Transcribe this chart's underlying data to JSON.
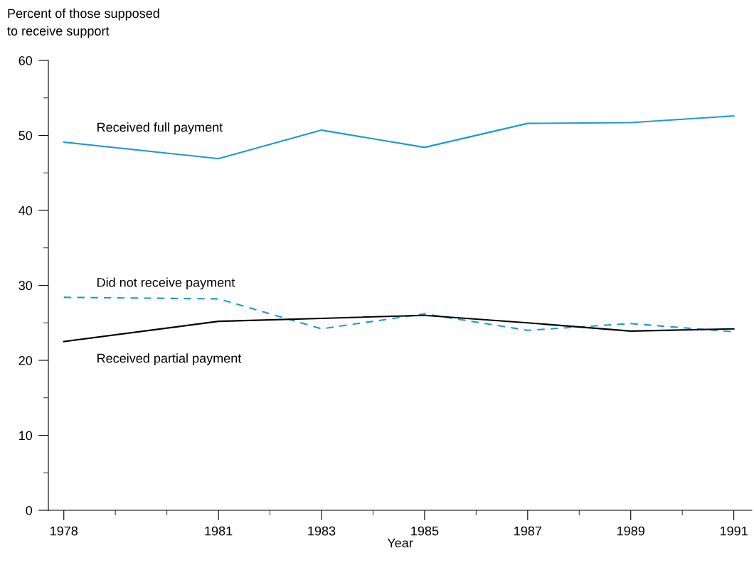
{
  "chart_data": {
    "type": "line",
    "xlabel": "Year",
    "ylabel": "Percent of those supposed\nto receive support",
    "x": [
      1978,
      1981,
      1983,
      1985,
      1987,
      1989,
      1991
    ],
    "series": [
      {
        "name": "Received full payment",
        "color": "#1a9ad6",
        "line_style": "solid",
        "values": [
          49.1,
          46.9,
          50.7,
          48.4,
          51.6,
          51.7,
          52.6
        ]
      },
      {
        "name": "Did not receive payment",
        "color": "#1a9ad6",
        "line_style": "dashed",
        "values": [
          28.4,
          28.2,
          24.2,
          26.2,
          24.0,
          24.9,
          23.8
        ]
      },
      {
        "name": "Received partial payment",
        "color": "#000000",
        "line_style": "solid",
        "values": [
          22.5,
          25.2,
          25.6,
          26.0,
          25.0,
          23.9,
          24.2
        ]
      }
    ],
    "xlim": [
      1977.7,
      1991.35
    ],
    "xticks": [
      1978,
      {
        "value": 1979,
        "label": null
      },
      {
        "value": 1980,
        "label": null
      },
      1981,
      {
        "value": 1982,
        "label": null
      },
      1983,
      {
        "value": 1984,
        "label": null
      },
      1985,
      {
        "value": 1986,
        "label": null
      },
      1987,
      {
        "value": 1988,
        "label": null
      },
      1989,
      {
        "value": 1990,
        "label": null
      },
      1991
    ],
    "ylim": [
      0,
      60
    ],
    "yticks": [
      0,
      {
        "value": 5,
        "label": null
      },
      10,
      {
        "value": 15,
        "label": null
      },
      20,
      {
        "value": 25,
        "label": null
      },
      30,
      {
        "value": 35,
        "label": null
      },
      40,
      {
        "value": 45,
        "label": null
      },
      50,
      {
        "value": 55,
        "label": null
      },
      60
    ],
    "grid": false,
    "legend": false,
    "marker": "none"
  }
}
